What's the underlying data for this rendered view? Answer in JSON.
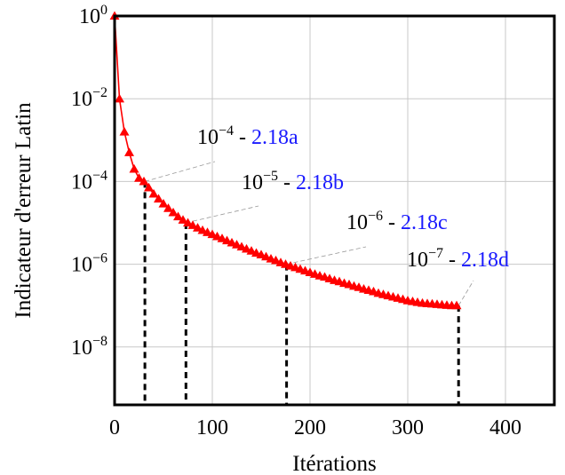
{
  "chart_data": {
    "type": "line",
    "xlabel": "Itérations",
    "ylabel": "Indicateur d'erreur Latin",
    "xlim": [
      0,
      450
    ],
    "ylim_log10": [
      -9.4,
      0
    ],
    "y_scale": "log",
    "grid": true,
    "x_ticks": [
      {
        "v": 0,
        "label": "0"
      },
      {
        "v": 100,
        "label": "100"
      },
      {
        "v": 200,
        "label": "200"
      },
      {
        "v": 300,
        "label": "300"
      },
      {
        "v": 400,
        "label": "400"
      }
    ],
    "y_ticks": [
      {
        "exp": 0,
        "base": "10",
        "sup": "0"
      },
      {
        "exp": -2,
        "base": "10",
        "sup": "−2"
      },
      {
        "exp": -4,
        "base": "10",
        "sup": "−4"
      },
      {
        "exp": -6,
        "base": "10",
        "sup": "−6"
      },
      {
        "exp": -8,
        "base": "10",
        "sup": "−8"
      }
    ],
    "series": [
      {
        "color": "#ff0000",
        "marker": "triangle",
        "x": [
          0,
          5,
          10,
          15,
          20,
          25,
          30,
          35,
          40,
          45,
          50,
          55,
          60,
          65,
          70,
          75,
          80,
          85,
          90,
          95,
          100,
          105,
          110,
          115,
          120,
          125,
          130,
          135,
          140,
          145,
          150,
          155,
          160,
          165,
          170,
          175,
          180,
          185,
          190,
          195,
          200,
          205,
          210,
          215,
          220,
          225,
          230,
          235,
          240,
          245,
          250,
          255,
          260,
          265,
          270,
          275,
          280,
          285,
          290,
          295,
          300,
          305,
          310,
          315,
          320,
          325,
          330,
          335,
          340,
          345,
          350
        ],
        "log10_y": [
          0,
          -2.0,
          -2.8,
          -3.3,
          -3.7,
          -3.92,
          -4.0,
          -4.15,
          -4.3,
          -4.42,
          -4.54,
          -4.65,
          -4.75,
          -4.85,
          -4.93,
          -5.0,
          -5.06,
          -5.12,
          -5.18,
          -5.23,
          -5.28,
          -5.33,
          -5.38,
          -5.43,
          -5.48,
          -5.53,
          -5.58,
          -5.63,
          -5.68,
          -5.73,
          -5.77,
          -5.82,
          -5.87,
          -5.91,
          -5.96,
          -6.0,
          -6.04,
          -6.08,
          -6.12,
          -6.16,
          -6.2,
          -6.24,
          -6.28,
          -6.31,
          -6.35,
          -6.39,
          -6.42,
          -6.46,
          -6.49,
          -6.53,
          -6.56,
          -6.6,
          -6.63,
          -6.66,
          -6.7,
          -6.73,
          -6.76,
          -6.79,
          -6.82,
          -6.85,
          -6.88,
          -6.9,
          -6.92,
          -6.94,
          -6.95,
          -6.96,
          -6.97,
          -6.98,
          -6.99,
          -7.0,
          -7.0
        ]
      }
    ],
    "annotations": [
      {
        "x": 31,
        "exp": -4,
        "base": "10",
        "sup": "−4",
        "sep": " - ",
        "ref": "2.18a"
      },
      {
        "x": 73,
        "exp": -5,
        "base": "10",
        "sup": "−5",
        "sep": " - ",
        "ref": "2.18b"
      },
      {
        "x": 176,
        "exp": -6,
        "base": "10",
        "sup": "−6",
        "sep": " - ",
        "ref": "2.18c"
      },
      {
        "x": 352,
        "exp": -7,
        "base": "10",
        "sup": "−7",
        "sep": " - ",
        "ref": "2.18d"
      }
    ],
    "ref_color": "#1a1aff"
  }
}
